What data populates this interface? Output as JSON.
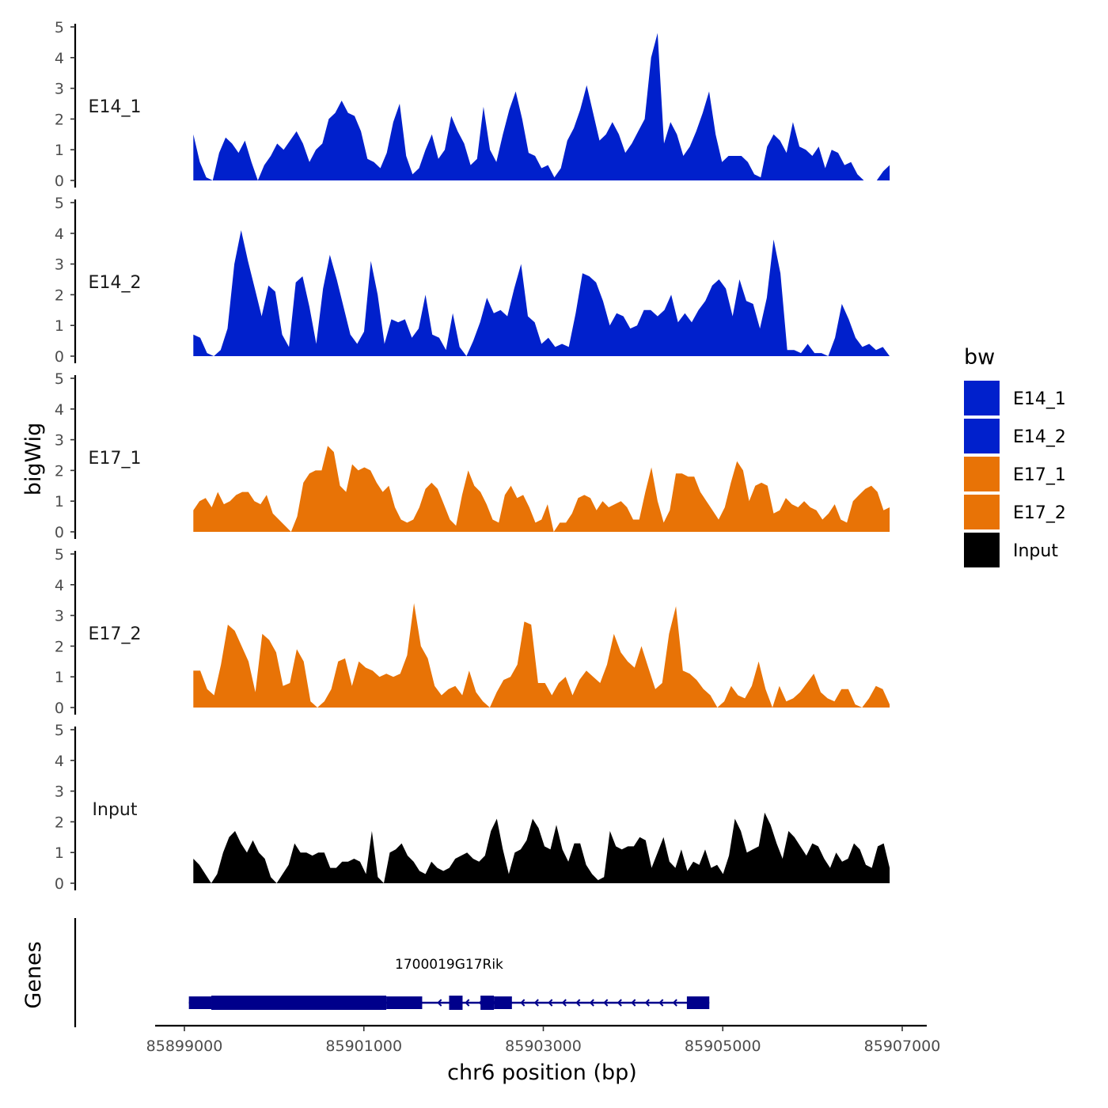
{
  "chart_data": {
    "type": "area",
    "ylabel": "bigWig",
    "xlabel": "chr6 position (bp)",
    "ylim": [
      0,
      5
    ],
    "yticks": [
      "0",
      "1",
      "2",
      "3",
      "4",
      "5"
    ],
    "xlim": [
      85898650,
      85907300
    ],
    "xticks": [
      85899000,
      85901000,
      85903000,
      85905000,
      85907000
    ],
    "xtick_labels": [
      "85899000",
      "85901000",
      "85903000",
      "85905000",
      "85907000"
    ],
    "x_start": 85899100,
    "x_end": 85906860,
    "legend": {
      "title": "bw",
      "entries": [
        {
          "label": "E14_1",
          "color": "#0020CC"
        },
        {
          "label": "E14_2",
          "color": "#0020CC"
        },
        {
          "label": "E17_1",
          "color": "#E87306"
        },
        {
          "label": "E17_2",
          "color": "#E87306"
        },
        {
          "label": "Input",
          "color": "#000000"
        }
      ]
    },
    "series": [
      {
        "name": "E14_1",
        "color": "#0020CC",
        "values": [
          1.5,
          0.6,
          0.1,
          0,
          0.9,
          1.4,
          1.2,
          0.9,
          1.3,
          0.6,
          0,
          0.5,
          0.8,
          1.2,
          1.0,
          1.3,
          1.6,
          1.2,
          0.6,
          1.0,
          1.2,
          2.0,
          2.2,
          2.6,
          2.2,
          2.1,
          1.6,
          0.7,
          0.6,
          0.4,
          0.9,
          1.9,
          2.5,
          0.8,
          0.2,
          0.4,
          1.0,
          1.5,
          0.7,
          1.0,
          2.1,
          1.6,
          1.2,
          0.5,
          0.7,
          2.4,
          1.0,
          0.6,
          1.5,
          2.3,
          2.9,
          2.0,
          0.9,
          0.8,
          0.4,
          0.5,
          0.1,
          0.4,
          1.3,
          1.7,
          2.3,
          3.1,
          2.2,
          1.3,
          1.5,
          1.9,
          1.5,
          0.9,
          1.2,
          1.6,
          2.0,
          4.0,
          4.8,
          1.2,
          1.9,
          1.5,
          0.8,
          1.1,
          1.6,
          2.2,
          2.9,
          1.5,
          0.6,
          0.8,
          0.8,
          0.8,
          0.6,
          0.2,
          0.1,
          1.1,
          1.5,
          1.3,
          0.9,
          1.9,
          1.1,
          1.0,
          0.8,
          1.1,
          0.4,
          1.0,
          0.9,
          0.5,
          0.6,
          0.2,
          0,
          0,
          0,
          0.3,
          0.5
        ]
      },
      {
        "name": "E14_2",
        "color": "#0020CC",
        "values": [
          0.7,
          0.6,
          0.1,
          0,
          0.2,
          0.9,
          3.0,
          4.1,
          3.1,
          2.2,
          1.3,
          2.3,
          2.1,
          0.7,
          0.3,
          2.4,
          2.6,
          1.6,
          0.4,
          2.2,
          3.3,
          2.5,
          1.6,
          0.7,
          0.4,
          0.8,
          3.1,
          2.0,
          0.4,
          1.2,
          1.1,
          1.2,
          0.6,
          0.9,
          2.0,
          0.7,
          0.6,
          0.2,
          1.4,
          0.3,
          0,
          0.5,
          1.1,
          1.9,
          1.4,
          1.5,
          1.3,
          2.2,
          3.0,
          1.3,
          1.1,
          0.4,
          0.6,
          0.3,
          0.4,
          0.3,
          1.4,
          2.7,
          2.6,
          2.4,
          1.8,
          1.0,
          1.4,
          1.3,
          0.9,
          1.0,
          1.5,
          1.5,
          1.3,
          1.5,
          2.0,
          1.1,
          1.4,
          1.1,
          1.5,
          1.8,
          2.3,
          2.5,
          2.2,
          1.3,
          2.5,
          1.8,
          1.7,
          0.9,
          1.9,
          3.8,
          2.7,
          0.2,
          0.2,
          0.1,
          0.4,
          0.1,
          0.1,
          0,
          0.6,
          1.7,
          1.2,
          0.6,
          0.3,
          0.4,
          0.2,
          0.3,
          0
        ]
      },
      {
        "name": "E17_1",
        "color": "#E87306",
        "values": [
          0.7,
          1.0,
          1.1,
          0.8,
          1.3,
          0.9,
          1.0,
          1.2,
          1.3,
          1.3,
          1.0,
          0.9,
          1.2,
          0.6,
          0.4,
          0.2,
          0,
          0.5,
          1.6,
          1.9,
          2.0,
          2.0,
          2.8,
          2.6,
          1.5,
          1.3,
          2.2,
          2.0,
          2.1,
          2.0,
          1.6,
          1.3,
          1.5,
          0.8,
          0.4,
          0.3,
          0.4,
          0.8,
          1.4,
          1.6,
          1.4,
          0.9,
          0.4,
          0.2,
          1.2,
          2.0,
          1.5,
          1.3,
          0.9,
          0.4,
          0.3,
          1.2,
          1.5,
          1.1,
          1.2,
          0.8,
          0.3,
          0.4,
          0.9,
          0,
          0.3,
          0.3,
          0.6,
          1.1,
          1.2,
          1.1,
          0.7,
          1.0,
          0.8,
          0.9,
          1.0,
          0.8,
          0.4,
          0.4,
          1.3,
          2.1,
          1.0,
          0.3,
          0.7,
          1.9,
          1.9,
          1.8,
          1.8,
          1.3,
          1.0,
          0.7,
          0.4,
          0.8,
          1.6,
          2.3,
          2.0,
          1.0,
          1.5,
          1.6,
          1.5,
          0.6,
          0.7,
          1.1,
          0.9,
          0.8,
          1.0,
          0.8,
          0.7,
          0.4,
          0.6,
          0.9,
          0.4,
          0.3,
          1.0,
          1.2,
          1.4,
          1.5,
          1.3,
          0.7,
          0.8
        ]
      },
      {
        "name": "E17_2",
        "color": "#E87306",
        "values": [
          1.2,
          1.2,
          0.6,
          0.4,
          1.4,
          2.7,
          2.5,
          2.0,
          1.5,
          0.5,
          2.4,
          2.2,
          1.8,
          0.7,
          0.8,
          1.9,
          1.5,
          0.2,
          0,
          0.2,
          0.6,
          1.5,
          1.6,
          0.7,
          1.5,
          1.3,
          1.2,
          1.0,
          1.1,
          1.0,
          1.1,
          1.7,
          3.4,
          2.0,
          1.6,
          0.7,
          0.4,
          0.6,
          0.7,
          0.4,
          1.2,
          0.5,
          0.2,
          0,
          0.5,
          0.9,
          1.0,
          1.4,
          2.8,
          2.7,
          0.8,
          0.8,
          0.4,
          0.8,
          1.0,
          0.4,
          0.9,
          1.2,
          1.0,
          0.8,
          1.4,
          2.4,
          1.8,
          1.5,
          1.3,
          2.0,
          1.3,
          0.6,
          0.8,
          2.4,
          3.3,
          1.2,
          1.1,
          0.9,
          0.6,
          0.4,
          0,
          0.2,
          0.7,
          0.4,
          0.3,
          0.7,
          1.5,
          0.6,
          0,
          0.7,
          0.2,
          0.3,
          0.5,
          0.8,
          1.1,
          0.5,
          0.3,
          0.2,
          0.6,
          0.6,
          0.1,
          0,
          0.3,
          0.7,
          0.6,
          0.1
        ]
      },
      {
        "name": "Input",
        "color": "#000000",
        "values": [
          0.8,
          0.6,
          0.3,
          0,
          0.3,
          1.0,
          1.5,
          1.7,
          1.3,
          1.0,
          1.4,
          1.0,
          0.8,
          0.2,
          0,
          0.3,
          0.6,
          1.3,
          1.0,
          1.0,
          0.9,
          1.0,
          1.0,
          0.5,
          0.5,
          0.7,
          0.7,
          0.8,
          0.7,
          0.3,
          1.7,
          0.2,
          0,
          1.0,
          1.1,
          1.3,
          0.9,
          0.7,
          0.4,
          0.3,
          0.7,
          0.5,
          0.4,
          0.5,
          0.8,
          0.9,
          1.0,
          0.8,
          0.7,
          0.9,
          1.7,
          2.1,
          1.1,
          0.3,
          1.0,
          1.1,
          1.4,
          2.1,
          1.8,
          1.2,
          1.1,
          1.9,
          1.1,
          0.7,
          1.3,
          1.3,
          0.6,
          0.3,
          0.1,
          0.2,
          1.7,
          1.2,
          1.1,
          1.2,
          1.2,
          1.5,
          1.4,
          0.5,
          1.0,
          1.5,
          0.7,
          0.5,
          1.1,
          0.4,
          0.7,
          0.6,
          1.1,
          0.5,
          0.6,
          0.3,
          0.9,
          2.1,
          1.7,
          1.0,
          1.1,
          1.2,
          2.3,
          1.9,
          1.3,
          0.8,
          1.7,
          1.5,
          1.2,
          0.9,
          1.3,
          1.2,
          0.8,
          0.5,
          1.0,
          0.7,
          0.8,
          1.3,
          1.1,
          0.6,
          0.5,
          1.2,
          1.3,
          0.5
        ]
      }
    ],
    "gene": {
      "name": "1700019G17Rik",
      "color": "#00008B",
      "strand": "-",
      "start": 85899050,
      "end": 85904850,
      "exons": [
        [
          85899050,
          85899300,
          "utr"
        ],
        [
          85899300,
          85901250,
          "cds"
        ],
        [
          85901250,
          85901650,
          "utr"
        ],
        [
          85901950,
          85902100,
          "cds"
        ],
        [
          85902300,
          85902450,
          "cds"
        ],
        [
          85902450,
          85902650,
          "utr"
        ],
        [
          85904600,
          85904850,
          "utr"
        ]
      ]
    },
    "gene_track_label": "Genes"
  }
}
